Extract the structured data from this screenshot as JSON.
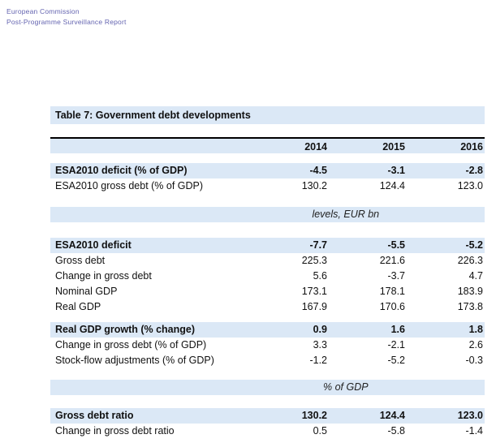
{
  "colors": {
    "band": "#dbe8f6",
    "header_text": "#6464b0"
  },
  "page_header": {
    "line1": "European Commission",
    "line2": "Post-Programme Surveillance Report"
  },
  "table": {
    "title": "Table 7: Government debt developments",
    "columns": [
      "2014",
      "2015",
      "2016"
    ],
    "units": {
      "levels": "levels, EUR bn",
      "pct_gdp": "% of GDP"
    },
    "rows": [
      {
        "label": "ESA2010 deficit (% of GDP)",
        "values": [
          "-4.5",
          "-3.1",
          "-2.8"
        ]
      },
      {
        "label": "ESA2010 gross debt (% of GDP)",
        "values": [
          "130.2",
          "124.4",
          "123.0"
        ]
      },
      {
        "label": "ESA2010 deficit",
        "values": [
          "-7.7",
          "-5.5",
          "-5.2"
        ]
      },
      {
        "label": "Gross debt",
        "values": [
          "225.3",
          "221.6",
          "226.3"
        ]
      },
      {
        "label": "Change in gross debt",
        "values": [
          "5.6",
          "-3.7",
          "4.7"
        ]
      },
      {
        "label": "Nominal GDP",
        "values": [
          "173.1",
          "178.1",
          "183.9"
        ]
      },
      {
        "label": "Real GDP",
        "values": [
          "167.9",
          "170.6",
          "173.8"
        ]
      },
      {
        "label": "Real GDP growth (% change)",
        "values": [
          "0.9",
          "1.6",
          "1.8"
        ]
      },
      {
        "label": "Change in gross debt (% of GDP)",
        "values": [
          "3.3",
          "-2.1",
          "2.6"
        ]
      },
      {
        "label": "Stock-flow adjustments (% of GDP)",
        "values": [
          "-1.2",
          "-5.2",
          "-0.3"
        ]
      },
      {
        "label": "Gross debt ratio",
        "values": [
          "130.2",
          "124.4",
          "123.0"
        ]
      },
      {
        "label": "Change in gross debt ratio",
        "values": [
          "0.5",
          "-5.8",
          "-1.4"
        ]
      }
    ]
  }
}
